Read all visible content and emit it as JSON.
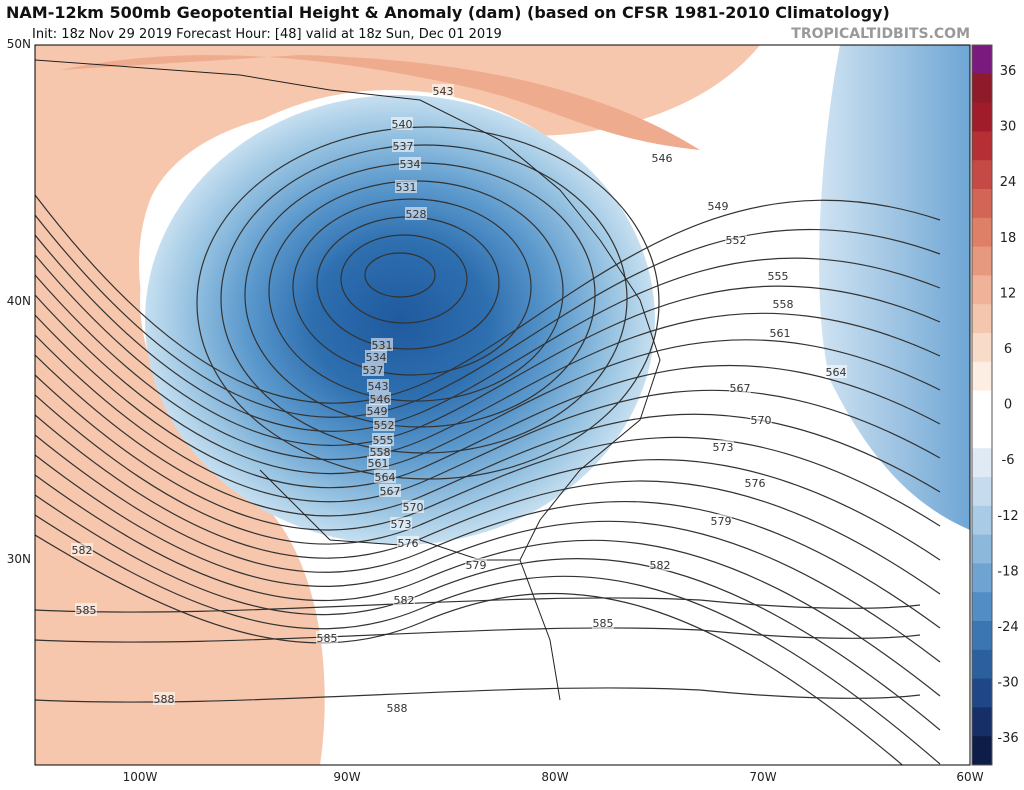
{
  "header": {
    "title": "NAM-12km 500mb Geopotential Height & Anomaly (dam) (based on CFSR 1981-2010 Climatology)",
    "subtitle": "Init: 18z Nov 29 2019   Forecast Hour: [48]   valid at 18z Sun, Dec 01 2019",
    "brand": "TROPICALTIDBITS.COM"
  },
  "map": {
    "latitude_labels": [
      "50N",
      "40N",
      "30N"
    ],
    "longitude_labels": [
      "100W",
      "90W",
      "80W",
      "70W",
      "60W"
    ],
    "contour_labels": [
      "543",
      "540",
      "537",
      "534",
      "531",
      "528",
      "546",
      "549",
      "552",
      "555",
      "558",
      "561",
      "564",
      "567",
      "570",
      "573",
      "576",
      "579",
      "582",
      "582",
      "585",
      "585",
      "588",
      "588",
      "585",
      "582",
      "579",
      "576",
      "573",
      "570",
      "567",
      "564",
      "561",
      "558",
      "555",
      "552",
      "549",
      "546",
      "543",
      "537",
      "534",
      "531"
    ]
  },
  "colorbar": {
    "ticks": [
      "36",
      "30",
      "24",
      "18",
      "12",
      "6",
      "0",
      "-6",
      "-12",
      "-18",
      "-24",
      "-30",
      "-36"
    ]
  }
}
